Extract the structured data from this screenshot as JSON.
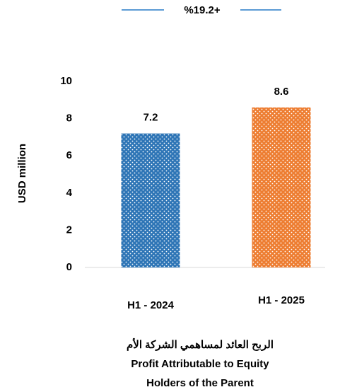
{
  "chart_data": {
    "type": "bar",
    "annotation": "%19.2+",
    "annotation_color": "#2aa84a",
    "annotation_line_color": "#5b9bd5",
    "ylabel": "USD million",
    "categories": [
      "H1 - 2024",
      "H1 - 2025"
    ],
    "values": [
      7.2,
      8.6
    ],
    "colors": [
      "#2e75b6",
      "#ed7d31"
    ],
    "ylim": [
      0,
      10
    ],
    "yticks": [
      0,
      2,
      4,
      6,
      8,
      10
    ],
    "xlabel_lines": [
      "الربح العائد لمساهمي الشركة الأم",
      "Profit Attributable to Equity",
      "Holders of the Parent"
    ]
  }
}
